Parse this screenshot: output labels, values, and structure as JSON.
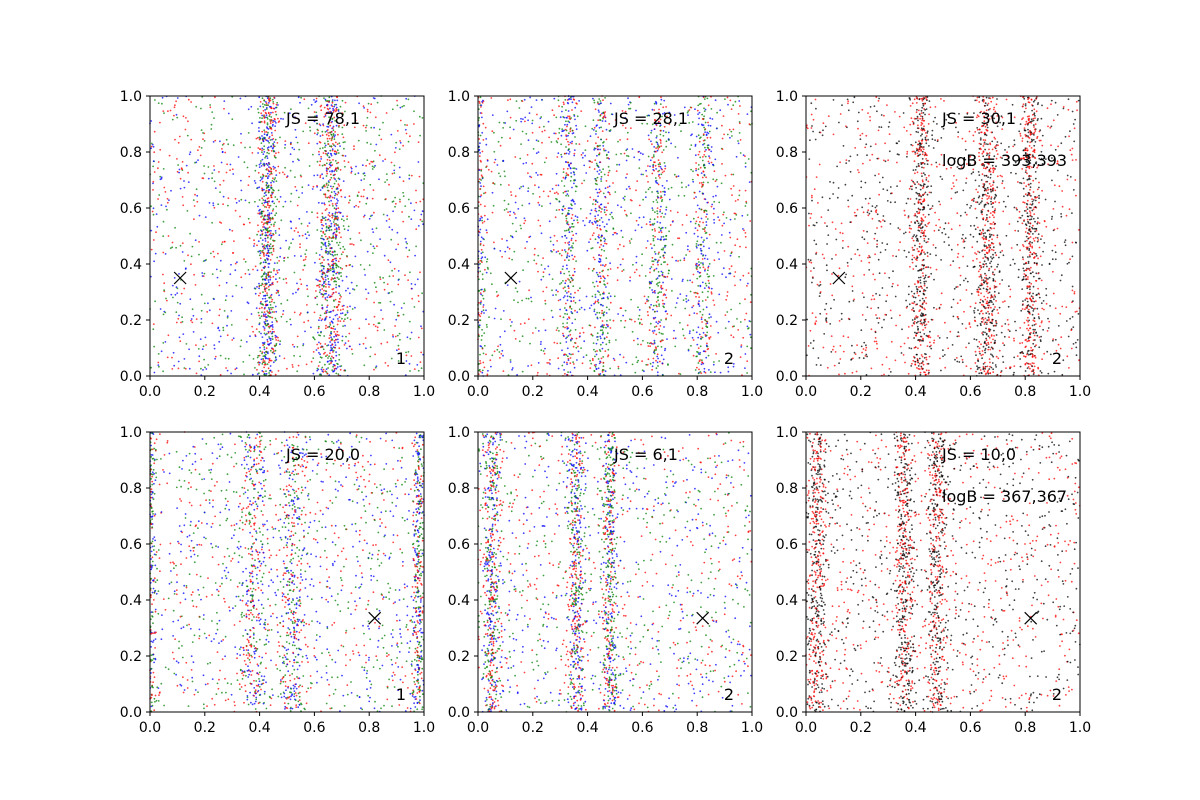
{
  "chart_data": [
    {
      "type": "scatter",
      "panel": 1,
      "annotations": {
        "js": "JS = 78,1",
        "logb": "",
        "corner": "1"
      },
      "marker": {
        "x": 0.11,
        "y": 0.35,
        "glyph": "×"
      },
      "xlim": [
        0,
        1
      ],
      "ylim": [
        0,
        1
      ],
      "x_ticks": [
        "0.0",
        "0.2",
        "0.4",
        "0.6",
        "0.8",
        "1.0"
      ],
      "y_ticks": [
        "0.0",
        "0.2",
        "0.4",
        "0.6",
        "0.8",
        "1.0"
      ],
      "series_colors": [
        "#0000ff",
        "#008000",
        "#ff0000"
      ],
      "seed": 11
    },
    {
      "type": "scatter",
      "panel": 2,
      "annotations": {
        "js": "JS = 28,1",
        "logb": "",
        "corner": "2"
      },
      "marker": {
        "x": 0.12,
        "y": 0.35,
        "glyph": "×"
      },
      "xlim": [
        0,
        1
      ],
      "ylim": [
        0,
        1
      ],
      "x_ticks": [
        "0.0",
        "0.2",
        "0.4",
        "0.6",
        "0.8",
        "1.0"
      ],
      "y_ticks": [
        "0.0",
        "0.2",
        "0.4",
        "0.6",
        "0.8",
        "1.0"
      ],
      "series_colors": [
        "#0000ff",
        "#008000",
        "#ff0000"
      ],
      "seed": 22
    },
    {
      "type": "scatter",
      "panel": 3,
      "annotations": {
        "js": "JS = 30,1",
        "logb": "logB = 393,393",
        "corner": "2"
      },
      "marker": {
        "x": 0.12,
        "y": 0.35,
        "glyph": "×"
      },
      "xlim": [
        0,
        1
      ],
      "ylim": [
        0,
        1
      ],
      "x_ticks": [
        "0.0",
        "0.2",
        "0.4",
        "0.6",
        "0.8",
        "1.0"
      ],
      "y_ticks": [
        "0.0",
        "0.2",
        "0.4",
        "0.6",
        "0.8",
        "1.0"
      ],
      "series_colors": [
        "#000000",
        "#ff0000"
      ],
      "seed": 33
    },
    {
      "type": "scatter",
      "panel": 4,
      "annotations": {
        "js": "JS = 20,0",
        "logb": "",
        "corner": "1"
      },
      "marker": {
        "x": 0.82,
        "y": 0.335,
        "glyph": "×"
      },
      "xlim": [
        0,
        1
      ],
      "ylim": [
        0,
        1
      ],
      "x_ticks": [
        "0.0",
        "0.2",
        "0.4",
        "0.6",
        "0.8",
        "1.0"
      ],
      "y_ticks": [
        "0.0",
        "0.2",
        "0.4",
        "0.6",
        "0.8",
        "1.0"
      ],
      "series_colors": [
        "#0000ff",
        "#008000",
        "#ff0000"
      ],
      "seed": 44
    },
    {
      "type": "scatter",
      "panel": 5,
      "annotations": {
        "js": "JS = 6,1",
        "logb": "",
        "corner": "2"
      },
      "marker": {
        "x": 0.82,
        "y": 0.335,
        "glyph": "×"
      },
      "xlim": [
        0,
        1
      ],
      "ylim": [
        0,
        1
      ],
      "x_ticks": [
        "0.0",
        "0.2",
        "0.4",
        "0.6",
        "0.8",
        "1.0"
      ],
      "y_ticks": [
        "0.0",
        "0.2",
        "0.4",
        "0.6",
        "0.8",
        "1.0"
      ],
      "series_colors": [
        "#0000ff",
        "#008000",
        "#ff0000"
      ],
      "seed": 55
    },
    {
      "type": "scatter",
      "panel": 6,
      "annotations": {
        "js": "JS = 10,0",
        "logb": "logB = 367,367",
        "corner": "2"
      },
      "marker": {
        "x": 0.82,
        "y": 0.335,
        "glyph": "×"
      },
      "xlim": [
        0,
        1
      ],
      "ylim": [
        0,
        1
      ],
      "x_ticks": [
        "0.0",
        "0.2",
        "0.4",
        "0.6",
        "0.8",
        "1.0"
      ],
      "y_ticks": [
        "0.0",
        "0.2",
        "0.4",
        "0.6",
        "0.8",
        "1.0"
      ],
      "series_colors": [
        "#000000",
        "#ff0000"
      ],
      "seed": 66
    }
  ]
}
